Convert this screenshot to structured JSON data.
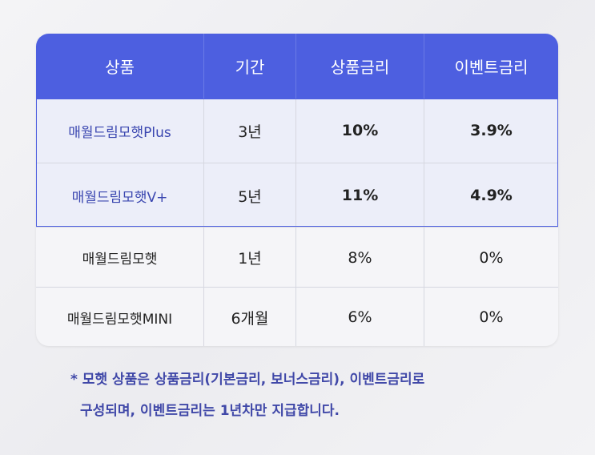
{
  "table": {
    "header": [
      "상품",
      "기간",
      "상품금리",
      "이벤트금리"
    ],
    "rows": [
      [
        "매월드림모햇Plus",
        "3년",
        "10%",
        "3.9%"
      ],
      [
        "매월드림모햇V+",
        "5년",
        "11%",
        "4.9%"
      ],
      [
        "매월드림모햇",
        "1년",
        "8%",
        "0%"
      ],
      [
        "매월드림모햇MINI",
        "6개월",
        "6%",
        "0%"
      ]
    ]
  },
  "note": {
    "lines": [
      "* 모햇 상품은 상품금리(기본금리, 보너스금리), 이벤트금리로",
      "구성되며, 이벤트금리는 1년차만 지급합니다."
    ]
  }
}
